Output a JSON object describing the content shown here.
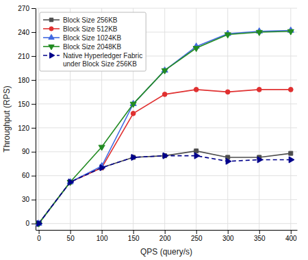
{
  "chart_data": {
    "type": "line",
    "x": [
      0,
      50,
      100,
      150,
      200,
      250,
      300,
      350,
      400
    ],
    "series": [
      {
        "name": "Block Size 256KB",
        "color": "#4d4d4d",
        "marker": "square",
        "line_style": "solid",
        "values": [
          0,
          52,
          70,
          83,
          85,
          91,
          83,
          83,
          88
        ]
      },
      {
        "name": "Block Size 512KB",
        "color": "#e03030",
        "marker": "circle",
        "line_style": "solid",
        "values": [
          0,
          52,
          70,
          138,
          162,
          168,
          165,
          168,
          168
        ]
      },
      {
        "name": "Block Size 1024KB",
        "color": "#4169e1",
        "marker": "triangle-up",
        "line_style": "solid",
        "values": [
          0,
          52,
          72,
          150,
          192,
          222,
          238,
          241,
          242
        ]
      },
      {
        "name": "Block Size 2048KB",
        "color": "#228B22",
        "marker": "triangle-down",
        "line_style": "solid",
        "values": [
          0,
          52,
          96,
          150,
          192,
          220,
          237,
          240,
          241
        ]
      },
      {
        "name": "Native Hyperledger Fabric\nunder Block Size 256KB",
        "color": "#00008B",
        "marker": "triangle-right",
        "line_style": "dashed",
        "values": [
          0,
          52,
          70,
          83,
          85,
          85,
          78,
          80,
          80
        ]
      }
    ],
    "xlabel": "QPS (query/s)",
    "ylabel": "Throughput (RPS)",
    "xlim": [
      -5,
      410
    ],
    "ylim": [
      -8,
      270
    ],
    "xticks": [
      0,
      50,
      100,
      150,
      200,
      250,
      300,
      350,
      400
    ],
    "yticks": [
      0,
      30,
      60,
      90,
      120,
      150,
      180,
      210,
      240,
      270
    ],
    "grid": true,
    "legend": "upper left"
  }
}
